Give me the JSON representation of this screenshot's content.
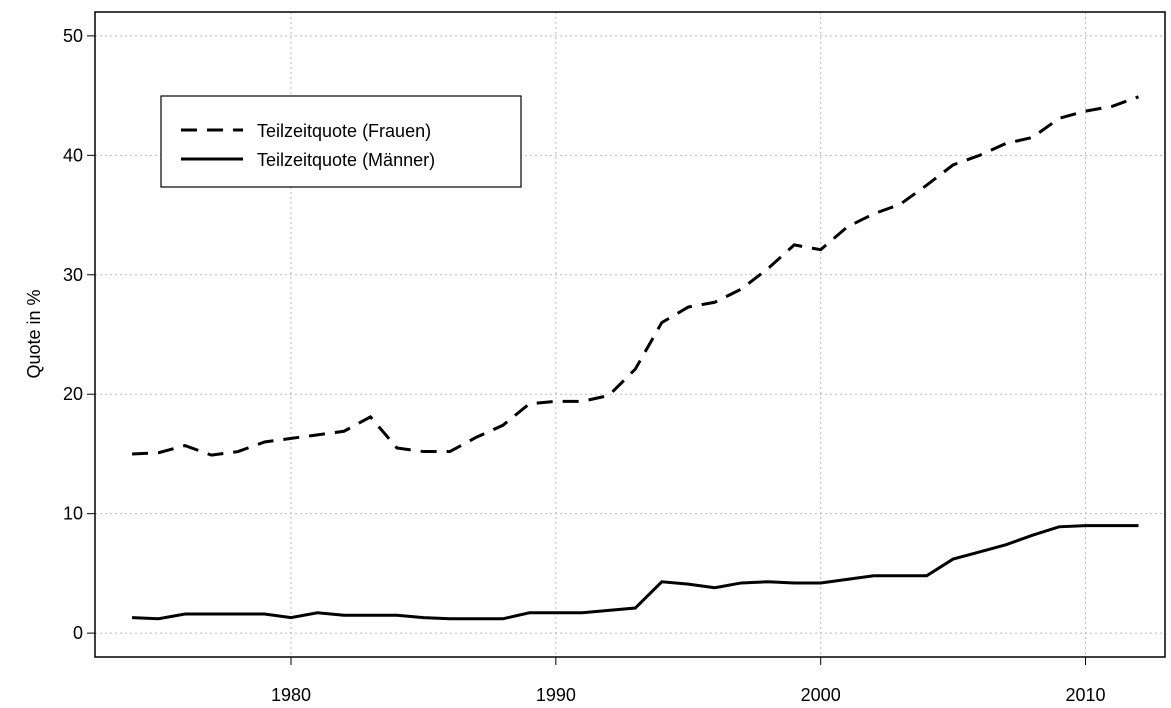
{
  "chart_data": {
    "type": "line",
    "y_label": "Quote in %",
    "x": [
      1974,
      1975,
      1976,
      1977,
      1978,
      1979,
      1980,
      1981,
      1982,
      1983,
      1984,
      1985,
      1986,
      1987,
      1988,
      1989,
      1990,
      1991,
      1992,
      1993,
      1994,
      1995,
      1996,
      1997,
      1998,
      1999,
      2000,
      2001,
      2002,
      2003,
      2004,
      2005,
      2006,
      2007,
      2008,
      2009,
      2010,
      2011,
      2012
    ],
    "series": [
      {
        "name": "Teilzeitquote (Frauen)",
        "color": "#000000",
        "dash": "dashed",
        "values": [
          15.0,
          15.1,
          15.7,
          14.9,
          15.2,
          16.0,
          16.3,
          16.6,
          16.9,
          18.1,
          15.5,
          15.2,
          15.2,
          16.4,
          17.4,
          19.2,
          19.4,
          19.4,
          19.9,
          22.1,
          26.0,
          27.3,
          27.7,
          28.8,
          30.5,
          32.5,
          32.1,
          34.0,
          35.1,
          35.9,
          37.5,
          39.2,
          40.0,
          41.0,
          41.5,
          43.1,
          43.7,
          44.1,
          44.9
        ]
      },
      {
        "name": "Teilzeitquote (Männer)",
        "color": "#000000",
        "dash": "solid",
        "values": [
          1.3,
          1.2,
          1.6,
          1.6,
          1.6,
          1.6,
          1.3,
          1.7,
          1.5,
          1.5,
          1.5,
          1.3,
          1.2,
          1.2,
          1.2,
          1.7,
          1.7,
          1.7,
          1.9,
          2.1,
          4.3,
          4.1,
          3.8,
          4.2,
          4.3,
          4.2,
          4.2,
          4.5,
          4.8,
          4.8,
          4.8,
          6.2,
          6.8,
          7.4,
          8.2,
          8.9,
          9.0,
          9.0,
          9.0
        ]
      }
    ],
    "xlim": [
      1972.6,
      2013
    ],
    "xticks": [
      1980,
      1990,
      2000,
      2010
    ],
    "ylim": [
      -2,
      52
    ],
    "yticks": [
      0,
      10,
      20,
      30,
      40,
      50
    ],
    "grid": true,
    "legend": "top-left"
  }
}
